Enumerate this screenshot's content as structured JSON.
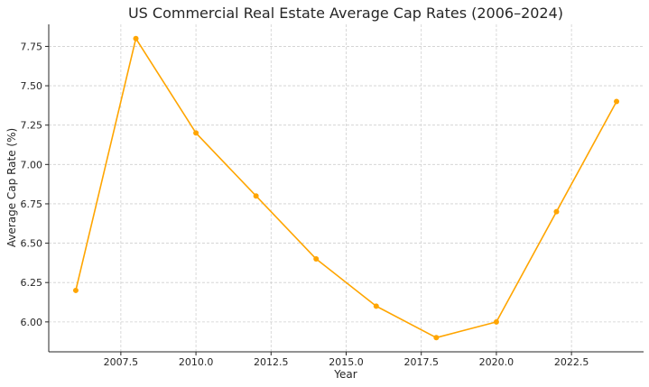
{
  "chart_data": {
    "type": "line",
    "title": "US Commercial Real Estate Average Cap Rates (2006–2024)",
    "xlabel": "Year",
    "ylabel": "Average Cap Rate (%)",
    "x": [
      2006,
      2008,
      2010,
      2012,
      2014,
      2016,
      2018,
      2020,
      2022,
      2024
    ],
    "series": [
      {
        "values": [
          6.2,
          7.8,
          7.2,
          6.8,
          6.4,
          6.1,
          5.9,
          6.0,
          6.7,
          7.4
        ]
      }
    ],
    "xlim": [
      2005.1,
      2024.9
    ],
    "ylim": [
      5.81,
      7.89
    ],
    "xticks": [
      "2007.5",
      "2010.0",
      "2012.5",
      "2015.0",
      "2017.5",
      "2020.0",
      "2022.5"
    ],
    "yticks": [
      "6.00",
      "6.25",
      "6.50",
      "6.75",
      "7.00",
      "7.25",
      "7.50",
      "7.75"
    ],
    "grid": true,
    "line_color": "#FFA500"
  }
}
